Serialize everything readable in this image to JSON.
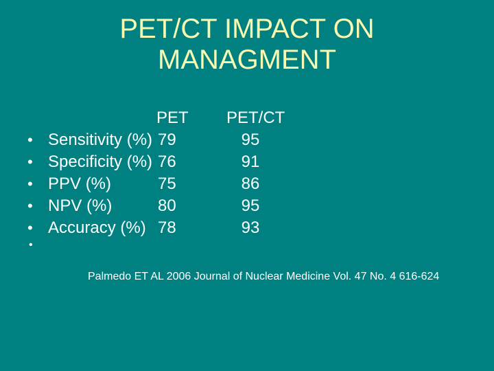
{
  "slide": {
    "title": "PET/CT IMPACT ON MANAGMENT",
    "bullet_char": "•",
    "table": {
      "col_headers": {
        "pet": "PET",
        "petct": "PET/CT"
      },
      "rows": [
        {
          "label": "Sensitivity (%)",
          "pet": "79",
          "petct": "95"
        },
        {
          "label": "Specificity (%)",
          "pet": "76",
          "petct": "91"
        },
        {
          "label": "PPV (%)",
          "pet": "75",
          "petct": "86"
        },
        {
          "label": "NPV (%)",
          "pet": "80",
          "petct": "95"
        },
        {
          "label": "Accuracy (%)",
          "pet": "78",
          "petct": "93"
        }
      ]
    },
    "citation": "Palmedo ET AL 2006 Journal of Nuclear Medicine Vol. 47 No. 4 616-624",
    "colors": {
      "background": "#008080",
      "title_text": "#F8F8B0",
      "body_text": "#FFFFFF"
    }
  }
}
